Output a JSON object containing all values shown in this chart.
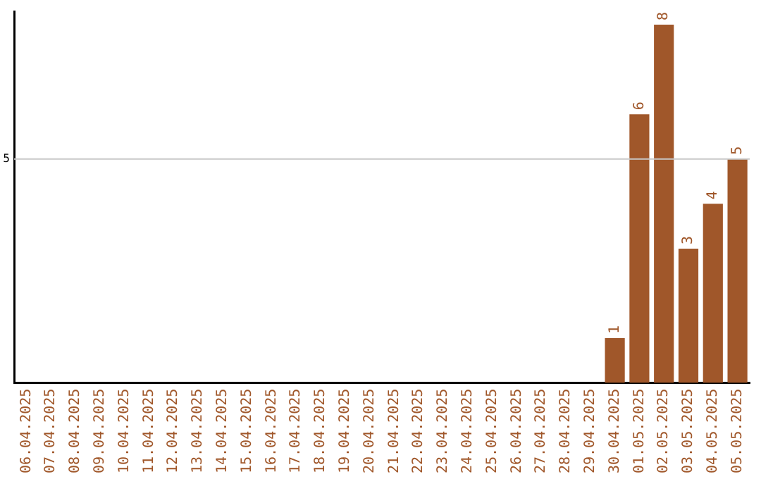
{
  "chart_data": {
    "type": "bar",
    "categories": [
      "06.04.2025",
      "07.04.2025",
      "08.04.2025",
      "09.04.2025",
      "10.04.2025",
      "11.04.2025",
      "12.04.2025",
      "13.04.2025",
      "14.04.2025",
      "15.04.2025",
      "16.04.2025",
      "17.04.2025",
      "18.04.2025",
      "19.04.2025",
      "20.04.2025",
      "21.04.2025",
      "22.04.2025",
      "23.04.2025",
      "24.04.2025",
      "25.04.2025",
      "26.04.2025",
      "27.04.2025",
      "28.04.2025",
      "29.04.2025",
      "30.04.2025",
      "01.05.2025",
      "02.05.2025",
      "03.05.2025",
      "04.05.2025",
      "05.05.2025"
    ],
    "values": [
      null,
      null,
      null,
      null,
      null,
      null,
      null,
      null,
      null,
      null,
      null,
      null,
      null,
      null,
      null,
      null,
      null,
      null,
      null,
      null,
      null,
      null,
      null,
      null,
      1,
      6,
      8,
      3,
      4,
      5
    ],
    "data_labels": true,
    "color": "#a0572a",
    "ylim": [
      0,
      8.3
    ],
    "ref_lines": [
      {
        "axis": "y",
        "value": 5,
        "label": "5",
        "color": "#c8c8c8"
      }
    ],
    "legend": false
  }
}
